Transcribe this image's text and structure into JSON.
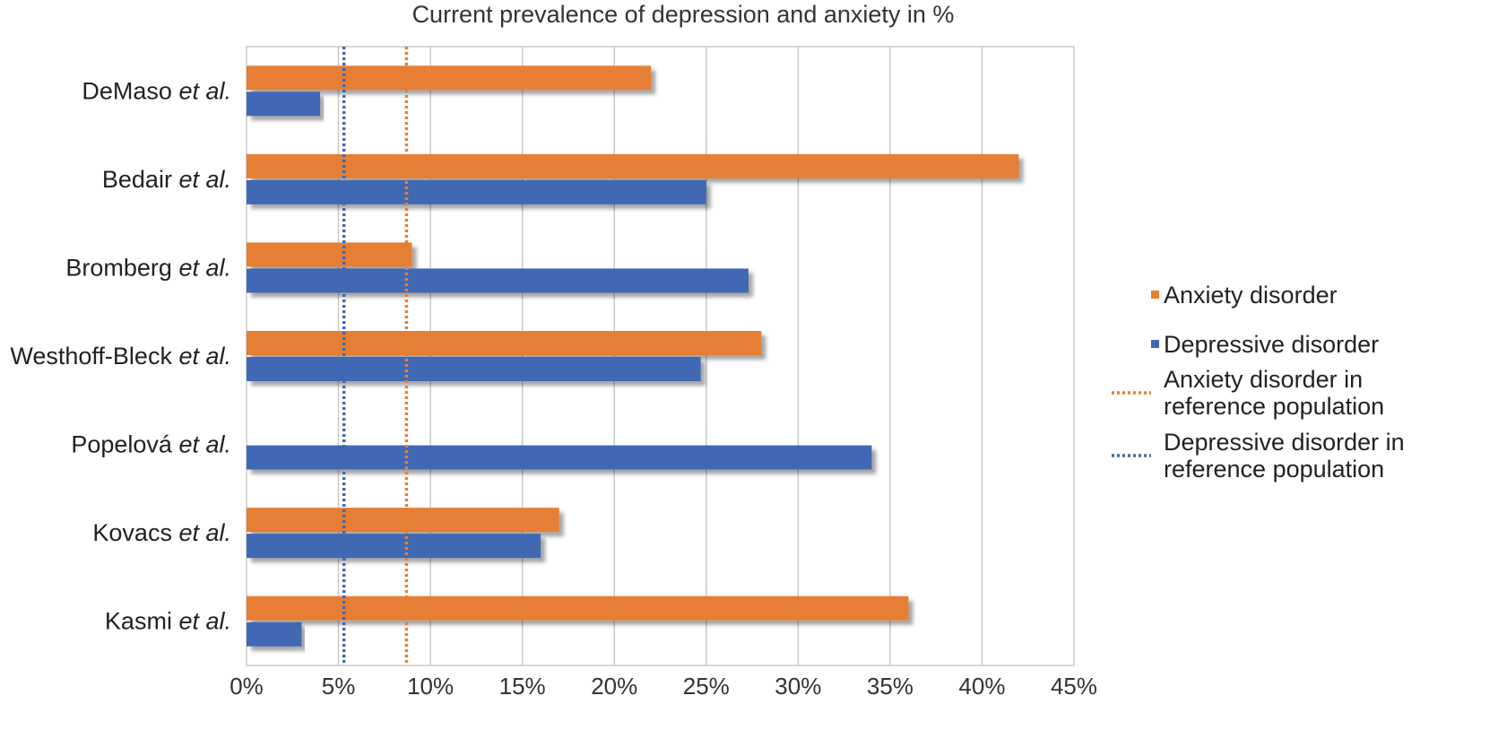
{
  "chart_data": {
    "type": "bar",
    "orientation": "horizontal",
    "title": "Current prevalence of depression and anxiety in %",
    "categories": [
      {
        "name": "DeMaso",
        "suffix": "et al."
      },
      {
        "name": "Bedair",
        "suffix": "et al."
      },
      {
        "name": "Bromberg",
        "suffix": "et al."
      },
      {
        "name": "Westhoff-Bleck",
        "suffix": "et al."
      },
      {
        "name": "Popelová",
        "suffix": "et al."
      },
      {
        "name": "Kovacs",
        "suffix": "et al."
      },
      {
        "name": "Kasmi",
        "suffix": "et al."
      }
    ],
    "series": [
      {
        "name": "Anxiety disorder",
        "color": "#E67E34",
        "values": [
          22,
          42,
          9,
          28,
          null,
          17,
          36
        ]
      },
      {
        "name": "Depressive disorder",
        "color": "#3F68B3",
        "values": [
          4,
          25,
          27.3,
          24.7,
          34,
          16,
          3
        ]
      }
    ],
    "reference_lines": [
      {
        "name": "Anxiety disorder in reference population",
        "label_lines": [
          "Anxiety disorder in",
          "reference population"
        ],
        "value": 8.7,
        "color": "#E67E34",
        "style": "dotted"
      },
      {
        "name": "Depressive disorder in reference population",
        "label_lines": [
          "Depressive disorder in",
          "reference population"
        ],
        "value": 5.3,
        "color": "#3F68B3",
        "style": "dotted"
      }
    ],
    "x_ticks": [
      "0%",
      "5%",
      "10%",
      "15%",
      "20%",
      "25%",
      "30%",
      "35%",
      "40%",
      "45%"
    ],
    "xlim": [
      0,
      45
    ],
    "grid": true,
    "legend_position": "right"
  }
}
